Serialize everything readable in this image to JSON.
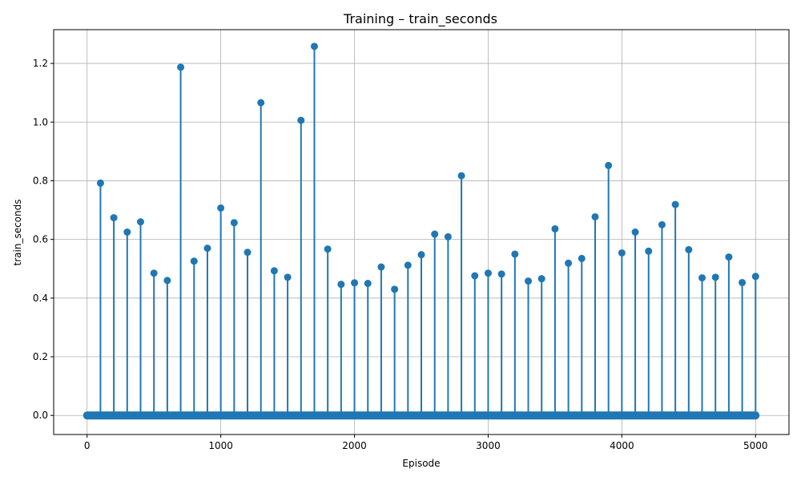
{
  "chart_data": {
    "type": "stem",
    "title": "Training – train_seconds",
    "xlabel": "Episode",
    "ylabel": "train_seconds",
    "xlim": [
      -250,
      5250
    ],
    "ylim": [
      -0.065,
      1.315
    ],
    "xticks": [
      0,
      1000,
      2000,
      3000,
      4000,
      5000
    ],
    "yticks": [
      0.0,
      0.2,
      0.4,
      0.6,
      0.8,
      1.0,
      1.2
    ],
    "ytick_labels": [
      "0.0",
      "0.2",
      "0.4",
      "0.6",
      "0.8",
      "1.0",
      "1.2"
    ],
    "grid": true,
    "color": "#1f77b4",
    "baseline": 0.0,
    "x_start": 0,
    "x_end": 5000,
    "x_step": 100,
    "series": [
      {
        "x": [
          100,
          200,
          300,
          400,
          500,
          600,
          700,
          800,
          900,
          1000,
          1100,
          1200,
          1300,
          1400,
          1500,
          1600,
          1700,
          1800,
          1900,
          2000,
          2100,
          2200,
          2300,
          2400,
          2500,
          2600,
          2700,
          2800,
          2900,
          3000,
          3100,
          3200,
          3300,
          3400,
          3500,
          3600,
          3700,
          3800,
          3900,
          4000,
          4100,
          4200,
          4300,
          4400,
          4500,
          4600,
          4700,
          4800,
          4900,
          5000
        ],
        "y": [
          0.792,
          0.674,
          0.625,
          0.66,
          0.485,
          0.46,
          1.187,
          0.526,
          0.57,
          0.707,
          0.657,
          0.556,
          1.066,
          0.493,
          0.471,
          1.006,
          1.258,
          0.567,
          0.447,
          0.452,
          0.45,
          0.506,
          0.43,
          0.512,
          0.548,
          0.618,
          0.609,
          0.817,
          0.476,
          0.485,
          0.482,
          0.55,
          0.458,
          0.466,
          0.636,
          0.519,
          0.535,
          0.677,
          0.852,
          0.554,
          0.625,
          0.56,
          0.65,
          0.719,
          0.565,
          0.469,
          0.471,
          0.54,
          0.453,
          0.474
        ]
      }
    ]
  }
}
